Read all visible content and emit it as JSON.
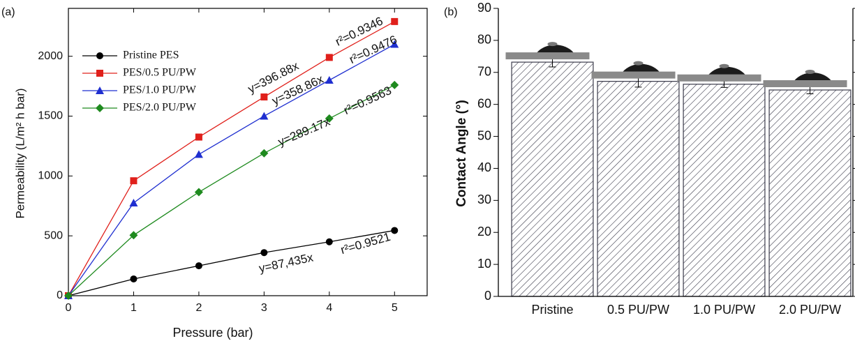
{
  "chart_data": [
    {
      "type": "line",
      "panel_label": "(a)",
      "x_label": "Pressure (bar)",
      "y_label": "Permeability (L/m² h bar)",
      "x": [
        0,
        1,
        2,
        3,
        4,
        5
      ],
      "series": [
        {
          "name": "Pristine PES",
          "color": "#000000",
          "marker": "circle",
          "values": [
            0,
            140,
            250,
            360,
            450,
            545
          ]
        },
        {
          "name": "PES/0.5 PU/PW",
          "color": "#e0201b",
          "marker": "square",
          "values": [
            0,
            960,
            1325,
            1660,
            1990,
            2290
          ]
        },
        {
          "name": "PES/1.0 PU/PW",
          "color": "#1f2fd0",
          "marker": "triangle",
          "values": [
            0,
            775,
            1180,
            1500,
            1800,
            2100
          ]
        },
        {
          "name": "PES/2.0 PU/PW",
          "color": "#1e8a1e",
          "marker": "diamond",
          "values": [
            0,
            505,
            865,
            1190,
            1480,
            1760
          ]
        }
      ],
      "annotations": [
        {
          "text": "y=396.88x",
          "color": "#e0201b"
        },
        {
          "text": "r²=0.9346",
          "color": "#e0201b"
        },
        {
          "text": "y=358.86x",
          "color": "#1f2fd0"
        },
        {
          "text": "r²=0.9476",
          "color": "#1f2fd0"
        },
        {
          "text": "y=289.17x",
          "color": "#000000"
        },
        {
          "text": "r²=0.9563",
          "color": "#000000"
        },
        {
          "text": "y=87,435x",
          "color": "#000000"
        },
        {
          "text": "r²=0.9521",
          "color": "#000000"
        }
      ],
      "xlim": [
        0,
        5.5
      ],
      "xticks": [
        0,
        1,
        2,
        3,
        4,
        5
      ],
      "ylim": [
        0,
        2400
      ],
      "yticks": [
        0,
        500,
        1000,
        1500,
        2000
      ],
      "legend": "upper left"
    },
    {
      "type": "bar",
      "panel_label": "(b)",
      "y_label": "Contact Angle (°)",
      "categories": [
        "Pristine",
        "0.5 PU/PW",
        "1.0 PU/PW",
        "2.0 PU/PW"
      ],
      "values": [
        73.2,
        67.2,
        66.3,
        64.5
      ],
      "errors": [
        1.5,
        1.8,
        1.0,
        1.2
      ],
      "color": "#3a3a4a",
      "ylim": [
        0,
        90
      ],
      "yticks": [
        0,
        10,
        20,
        30,
        40,
        50,
        60,
        70,
        80,
        90
      ]
    }
  ]
}
